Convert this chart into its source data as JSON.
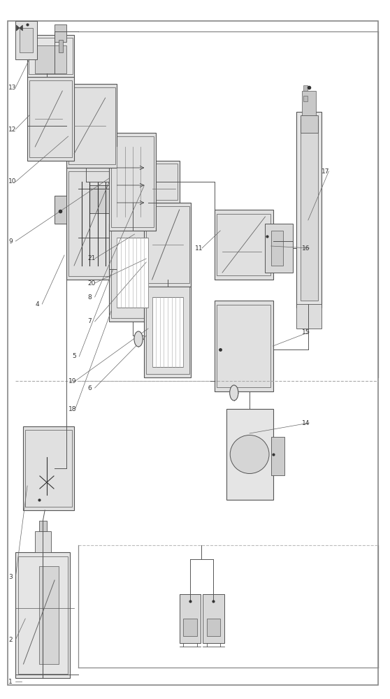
{
  "bg_color": "#ffffff",
  "line_color": "#555555",
  "fill_color": "#e8e8e8",
  "dark_color": "#333333",
  "fig_width": 5.58,
  "fig_height": 10.0,
  "dpi": 100
}
